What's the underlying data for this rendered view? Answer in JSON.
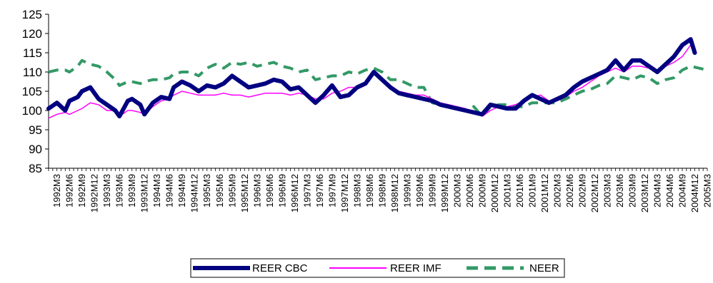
{
  "chart_data": {
    "type": "line",
    "title": "",
    "xlabel": "",
    "ylabel": "",
    "ylim": [
      85,
      125
    ],
    "yticks": [
      85,
      90,
      95,
      100,
      105,
      110,
      115,
      120,
      125
    ],
    "x_labels": [
      "1992M3",
      "1992M6",
      "1992M9",
      "1992M12",
      "1993M3",
      "1993M6",
      "1993M9",
      "1993M12",
      "1994M3",
      "1994M6",
      "1994M9",
      "1994M12",
      "1995M3",
      "1995M6",
      "1995M9",
      "1995M12",
      "1996M3",
      "1996M6",
      "1996M9",
      "1996M12",
      "1997M3",
      "1997M6",
      "1997M9",
      "1997M12",
      "1998M3",
      "1998M6",
      "1998M9",
      "1998M12",
      "1999M3",
      "1999M6",
      "1999M9",
      "1999M12",
      "2000M3",
      "2000M6",
      "2000M9",
      "2000M12",
      "2001M3",
      "2001M6",
      "2001M9",
      "2001M12",
      "2002M3",
      "2002M6",
      "2002M9",
      "2002M12",
      "2003M3",
      "2003M6",
      "2003M9",
      "2003M12",
      "2004M3",
      "2004M6",
      "2004M9",
      "2004M12",
      "2005M3"
    ],
    "grid": false,
    "legend_position": "bottom",
    "series": [
      {
        "name": "REER CBC",
        "color": "#000080",
        "style": "solid-thick",
        "points": [
          [
            "1992M1",
            100.5
          ],
          [
            "1992M3",
            102
          ],
          [
            "1992M5",
            100
          ],
          [
            "1992M6",
            102.5
          ],
          [
            "1992M8",
            103.5
          ],
          [
            "1992M9",
            105
          ],
          [
            "1992M11",
            106
          ],
          [
            "1993M1",
            103
          ],
          [
            "1993M3",
            101.5
          ],
          [
            "1993M5",
            100
          ],
          [
            "1993M6",
            98.5
          ],
          [
            "1993M8",
            102.5
          ],
          [
            "1993M9",
            103
          ],
          [
            "1993M11",
            101.5
          ],
          [
            "1993M12",
            99
          ],
          [
            "1994M2",
            102
          ],
          [
            "1994M4",
            103.5
          ],
          [
            "1994M6",
            103
          ],
          [
            "1994M7",
            106
          ],
          [
            "1994M9",
            107.5
          ],
          [
            "1994M11",
            106.5
          ],
          [
            "1995M1",
            105
          ],
          [
            "1995M3",
            106.5
          ],
          [
            "1995M5",
            106
          ],
          [
            "1995M7",
            107
          ],
          [
            "1995M9",
            109
          ],
          [
            "1995M11",
            107.5
          ],
          [
            "1996M1",
            106
          ],
          [
            "1996M3",
            106.5
          ],
          [
            "1996M5",
            107
          ],
          [
            "1996M7",
            108
          ],
          [
            "1996M9",
            107.5
          ],
          [
            "1996M11",
            105.5
          ],
          [
            "1997M1",
            106
          ],
          [
            "1997M3",
            104
          ],
          [
            "1997M5",
            102
          ],
          [
            "1997M7",
            104
          ],
          [
            "1997M9",
            106.5
          ],
          [
            "1997M11",
            103.5
          ],
          [
            "1998M1",
            104
          ],
          [
            "1998M3",
            106
          ],
          [
            "1998M5",
            107
          ],
          [
            "1998M7",
            110
          ],
          [
            "1998M9",
            108
          ],
          [
            "1998M11",
            106
          ],
          [
            "1999M1",
            104.5
          ],
          [
            "1999M3",
            104
          ],
          [
            "1999M5",
            103.5
          ],
          [
            "1999M7",
            103
          ],
          [
            "1999M9",
            102.5
          ],
          [
            "1999M11",
            101.5
          ],
          [
            "2000M1",
            101
          ],
          [
            "2000M3",
            100.5
          ],
          [
            "2000M5",
            100
          ],
          [
            "2000M7",
            99.5
          ],
          [
            "2000M9",
            99
          ],
          [
            "2000M11",
            101.5
          ],
          [
            "2001M1",
            101
          ],
          [
            "2001M3",
            100.5
          ],
          [
            "2001M5",
            100.5
          ],
          [
            "2001M7",
            102.5
          ],
          [
            "2001M9",
            104
          ],
          [
            "2001M11",
            103
          ],
          [
            "2002M1",
            102
          ],
          [
            "2002M3",
            103
          ],
          [
            "2002M5",
            104
          ],
          [
            "2002M7",
            106
          ],
          [
            "2002M9",
            107.5
          ],
          [
            "2002M11",
            108.5
          ],
          [
            "2003M1",
            109.5
          ],
          [
            "2003M3",
            110.5
          ],
          [
            "2003M5",
            113
          ],
          [
            "2003M7",
            110.5
          ],
          [
            "2003M9",
            113
          ],
          [
            "2003M11",
            113
          ],
          [
            "2004M1",
            111.5
          ],
          [
            "2004M3",
            110
          ],
          [
            "2004M5",
            112
          ],
          [
            "2004M7",
            114
          ],
          [
            "2004M9",
            117
          ],
          [
            "2004M11",
            118.5
          ],
          [
            "2004M12",
            115
          ]
        ]
      },
      {
        "name": "REER IMF",
        "color": "#ff00ff",
        "style": "solid-thin",
        "points": [
          [
            "1992M1",
            98
          ],
          [
            "1992M3",
            99
          ],
          [
            "1992M5",
            99.5
          ],
          [
            "1992M6",
            99
          ],
          [
            "1992M8",
            100
          ],
          [
            "1992M9",
            100.5
          ],
          [
            "1992M11",
            102
          ],
          [
            "1993M1",
            101.5
          ],
          [
            "1993M3",
            100
          ],
          [
            "1993M5",
            100
          ],
          [
            "1993M6",
            98.5
          ],
          [
            "1993M8",
            100
          ],
          [
            "1993M9",
            100
          ],
          [
            "1993M11",
            99.5
          ],
          [
            "1993M12",
            99
          ],
          [
            "1994M2",
            101
          ],
          [
            "1994M4",
            102.5
          ],
          [
            "1994M6",
            103
          ],
          [
            "1994M7",
            104
          ],
          [
            "1994M9",
            105
          ],
          [
            "1994M11",
            104.5
          ],
          [
            "1995M1",
            104
          ],
          [
            "1995M3",
            104
          ],
          [
            "1995M5",
            104
          ],
          [
            "1995M7",
            104.5
          ],
          [
            "1995M9",
            104
          ],
          [
            "1995M11",
            104
          ],
          [
            "1996M1",
            103.5
          ],
          [
            "1996M3",
            104
          ],
          [
            "1996M5",
            104.5
          ],
          [
            "1996M7",
            104.5
          ],
          [
            "1996M9",
            104.5
          ],
          [
            "1996M11",
            104
          ],
          [
            "1997M1",
            104.5
          ],
          [
            "1997M3",
            104
          ],
          [
            "1997M5",
            103
          ],
          [
            "1997M7",
            103
          ],
          [
            "1997M9",
            104.5
          ],
          [
            "1997M11",
            105
          ],
          [
            "1998M1",
            106
          ],
          [
            "1998M3",
            106
          ],
          [
            "1998M5",
            107
          ],
          [
            "1998M7",
            109.5
          ],
          [
            "1998M9",
            108
          ],
          [
            "1998M11",
            106.5
          ],
          [
            "1999M1",
            105
          ],
          [
            "1999M3",
            104.5
          ],
          [
            "1999M5",
            104
          ],
          [
            "1999M7",
            104
          ],
          [
            "1999M9",
            103
          ],
          [
            "1999M11",
            102
          ],
          [
            "2000M1",
            101.5
          ],
          [
            "2000M3",
            101
          ],
          [
            "2000M5",
            100.5
          ],
          [
            "2000M7",
            99.5
          ],
          [
            "2000M9",
            98.5
          ],
          [
            "2000M11",
            100
          ],
          [
            "2001M1",
            101
          ],
          [
            "2001M3",
            101
          ],
          [
            "2001M5",
            101.5
          ],
          [
            "2001M7",
            102.5
          ],
          [
            "2001M9",
            103.5
          ],
          [
            "2001M11",
            104
          ],
          [
            "2002M1",
            102.5
          ],
          [
            "2002M3",
            102.5
          ],
          [
            "2002M5",
            103.5
          ],
          [
            "2002M7",
            105
          ],
          [
            "2002M9",
            106
          ],
          [
            "2002M11",
            107.5
          ],
          [
            "2003M1",
            109
          ],
          [
            "2003M3",
            110
          ],
          [
            "2003M5",
            111
          ],
          [
            "2003M7",
            110
          ],
          [
            "2003M9",
            111.5
          ],
          [
            "2003M11",
            111.5
          ],
          [
            "2004M1",
            111
          ],
          [
            "2004M3",
            110.5
          ],
          [
            "2004M5",
            111.5
          ],
          [
            "2004M7",
            112.5
          ],
          [
            "2004M9",
            114
          ],
          [
            "2004M11",
            117
          ],
          [
            "2004M12",
            116.5
          ]
        ]
      },
      {
        "name": "NEER",
        "color": "#339966",
        "style": "dashed",
        "points": [
          [
            "1992M1",
            110
          ],
          [
            "1992M3",
            110.5
          ],
          [
            "1992M5",
            110.5
          ],
          [
            "1992M6",
            110
          ],
          [
            "1992M8",
            111.5
          ],
          [
            "1992M9",
            113
          ],
          [
            "1992M11",
            112
          ],
          [
            "1993M1",
            111.5
          ],
          [
            "1993M3",
            110
          ],
          [
            "1993M5",
            108
          ],
          [
            "1993M6",
            106.5
          ],
          [
            "1993M8",
            107.5
          ],
          [
            "1993M9",
            107.5
          ],
          [
            "1993M11",
            107
          ],
          [
            "1993M12",
            107.5
          ],
          [
            "1994M2",
            108
          ],
          [
            "1994M4",
            108
          ],
          [
            "1994M6",
            108.5
          ],
          [
            "1994M7",
            109.5
          ],
          [
            "1994M9",
            110
          ],
          [
            "1994M11",
            110
          ],
          [
            "1995M1",
            109
          ],
          [
            "1995M3",
            111
          ],
          [
            "1995M5",
            112
          ],
          [
            "1995M7",
            111
          ],
          [
            "1995M9",
            112.5
          ],
          [
            "1995M11",
            112
          ],
          [
            "1996M1",
            112.5
          ],
          [
            "1996M3",
            111.5
          ],
          [
            "1996M5",
            112
          ],
          [
            "1996M7",
            112.5
          ],
          [
            "1996M9",
            111.5
          ],
          [
            "1996M11",
            111
          ],
          [
            "1997M1",
            110
          ],
          [
            "1997M3",
            110.5
          ],
          [
            "1997M5",
            108
          ],
          [
            "1997M7",
            108.5
          ],
          [
            "1997M9",
            109
          ],
          [
            "1997M11",
            109
          ],
          [
            "1998M1",
            110
          ],
          [
            "1998M3",
            109.5
          ],
          [
            "1998M5",
            110.5
          ],
          [
            "1998M7",
            111
          ],
          [
            "1998M9",
            110
          ],
          [
            "1998M11",
            108
          ],
          [
            "1999M1",
            108
          ],
          [
            "1999M3",
            107
          ],
          [
            "1999M5",
            106
          ],
          [
            "1999M7",
            106
          ],
          [
            "1999M9",
            102
          ],
          [
            "1999M11",
            101.5
          ],
          [
            "2000M1",
            101
          ],
          [
            "2000M3",
            100.5
          ],
          [
            "2000M5",
            100
          ],
          [
            "2000M7",
            101
          ],
          [
            "2000M9",
            98.5
          ],
          [
            "2000M11",
            101
          ],
          [
            "2001M1",
            101.5
          ],
          [
            "2001M3",
            101.5
          ],
          [
            "2001M5",
            101
          ],
          [
            "2001M7",
            101
          ],
          [
            "2001M9",
            102
          ],
          [
            "2001M11",
            102
          ],
          [
            "2002M1",
            102
          ],
          [
            "2002M3",
            102
          ],
          [
            "2002M5",
            103
          ],
          [
            "2002M7",
            104
          ],
          [
            "2002M9",
            105
          ],
          [
            "2002M11",
            105.5
          ],
          [
            "2003M1",
            106.5
          ],
          [
            "2003M3",
            107
          ],
          [
            "2003M5",
            109
          ],
          [
            "2003M7",
            108.5
          ],
          [
            "2003M9",
            108
          ],
          [
            "2003M11",
            109
          ],
          [
            "2004M1",
            108.5
          ],
          [
            "2004M3",
            107
          ],
          [
            "2004M5",
            108
          ],
          [
            "2004M7",
            108.5
          ],
          [
            "2004M9",
            110.5
          ],
          [
            "2004M11",
            111.5
          ],
          [
            "2005M1",
            111
          ],
          [
            "2005M3",
            110.5
          ]
        ]
      }
    ]
  }
}
